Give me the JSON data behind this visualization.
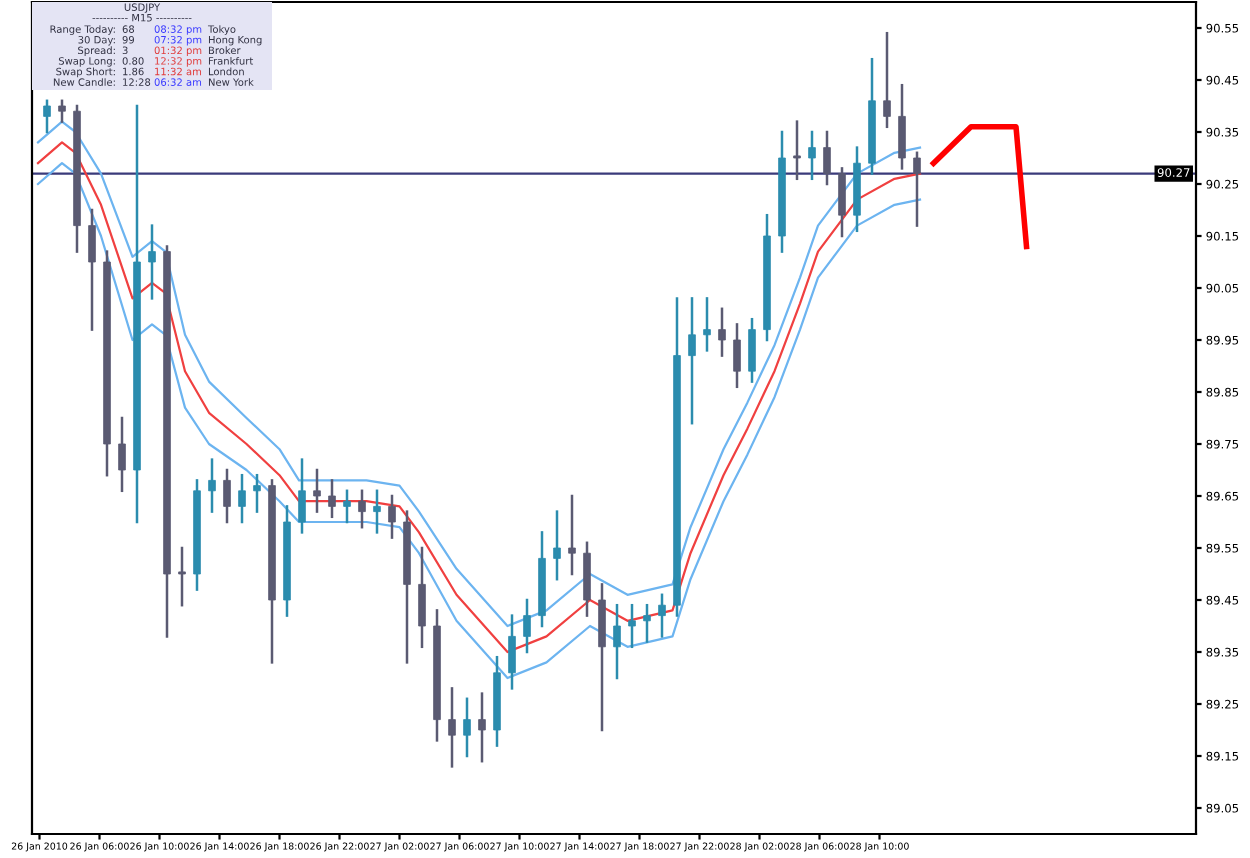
{
  "chart_data": {
    "type": "candlestick",
    "x": [
      "2010-01-26T02:30",
      "2010-01-26T03:30",
      "2010-01-26T04:30",
      "2010-01-26T05:30",
      "2010-01-26T06:30",
      "2010-01-26T07:30",
      "2010-01-26T08:30",
      "2010-01-26T09:30",
      "2010-01-26T10:30",
      "2010-01-26T11:30",
      "2010-01-26T12:30",
      "2010-01-26T13:30",
      "2010-01-26T14:30",
      "2010-01-26T15:30",
      "2010-01-26T16:30",
      "2010-01-26T17:30",
      "2010-01-26T18:30",
      "2010-01-26T19:30",
      "2010-01-26T20:30",
      "2010-01-26T21:30",
      "2010-01-26T22:30",
      "2010-01-26T23:30",
      "2010-01-27T00:30",
      "2010-01-27T01:30",
      "2010-01-27T02:30",
      "2010-01-27T03:30",
      "2010-01-27T04:30",
      "2010-01-27T05:30",
      "2010-01-27T06:30",
      "2010-01-27T07:30",
      "2010-01-27T08:30",
      "2010-01-27T09:30",
      "2010-01-27T10:30",
      "2010-01-27T11:30",
      "2010-01-27T12:30",
      "2010-01-27T13:30",
      "2010-01-27T14:30",
      "2010-01-27T15:30",
      "2010-01-27T16:30",
      "2010-01-27T17:30",
      "2010-01-27T18:30",
      "2010-01-27T19:30",
      "2010-01-27T20:30",
      "2010-01-27T21:30",
      "2010-01-27T22:30",
      "2010-01-27T23:30",
      "2010-01-28T00:30",
      "2010-01-28T01:30",
      "2010-01-28T02:30",
      "2010-01-28T03:30",
      "2010-01-28T04:30",
      "2010-01-28T05:30",
      "2010-01-28T06:30",
      "2010-01-28T07:30",
      "2010-01-28T08:30",
      "2010-01-28T09:30",
      "2010-01-28T10:30",
      "2010-01-28T11:30",
      "2010-01-28T12:30"
    ],
    "ohlc": [
      [
        90.38,
        90.41,
        90.35,
        90.4
      ],
      [
        90.4,
        90.41,
        90.37,
        90.39
      ],
      [
        90.39,
        90.4,
        90.12,
        90.17
      ],
      [
        90.17,
        90.2,
        89.97,
        90.1
      ],
      [
        90.1,
        90.12,
        89.69,
        89.75
      ],
      [
        89.75,
        89.8,
        89.66,
        89.7
      ],
      [
        89.7,
        90.4,
        89.6,
        90.1
      ],
      [
        90.1,
        90.17,
        90.03,
        90.12
      ],
      [
        90.12,
        90.13,
        89.38,
        89.5
      ],
      [
        89.5,
        89.55,
        89.44,
        89.5
      ],
      [
        89.5,
        89.68,
        89.47,
        89.66
      ],
      [
        89.66,
        89.72,
        89.62,
        89.68
      ],
      [
        89.68,
        89.7,
        89.6,
        89.63
      ],
      [
        89.63,
        89.69,
        89.6,
        89.66
      ],
      [
        89.66,
        89.69,
        89.62,
        89.67
      ],
      [
        89.67,
        89.68,
        89.33,
        89.45
      ],
      [
        89.45,
        89.63,
        89.42,
        89.6
      ],
      [
        89.6,
        89.72,
        89.58,
        89.66
      ],
      [
        89.66,
        89.7,
        89.62,
        89.65
      ],
      [
        89.65,
        89.68,
        89.61,
        89.63
      ],
      [
        89.63,
        89.66,
        89.6,
        89.64
      ],
      [
        89.64,
        89.66,
        89.59,
        89.62
      ],
      [
        89.62,
        89.66,
        89.58,
        89.63
      ],
      [
        89.63,
        89.65,
        89.57,
        89.6
      ],
      [
        89.6,
        89.62,
        89.33,
        89.48
      ],
      [
        89.48,
        89.55,
        89.36,
        89.4
      ],
      [
        89.4,
        89.43,
        89.18,
        89.22
      ],
      [
        89.22,
        89.28,
        89.13,
        89.19
      ],
      [
        89.19,
        89.26,
        89.15,
        89.22
      ],
      [
        89.22,
        89.27,
        89.14,
        89.2
      ],
      [
        89.2,
        89.34,
        89.17,
        89.31
      ],
      [
        89.31,
        89.42,
        89.28,
        89.38
      ],
      [
        89.38,
        89.45,
        89.35,
        89.42
      ],
      [
        89.42,
        89.58,
        89.4,
        89.53
      ],
      [
        89.53,
        89.62,
        89.49,
        89.55
      ],
      [
        89.55,
        89.65,
        89.5,
        89.54
      ],
      [
        89.54,
        89.56,
        89.42,
        89.45
      ],
      [
        89.45,
        89.48,
        89.2,
        89.36
      ],
      [
        89.36,
        89.44,
        89.3,
        89.4
      ],
      [
        89.4,
        89.44,
        89.36,
        89.41
      ],
      [
        89.41,
        89.44,
        89.37,
        89.42
      ],
      [
        89.42,
        89.46,
        89.38,
        89.44
      ],
      [
        89.44,
        90.03,
        89.42,
        89.92
      ],
      [
        89.92,
        90.03,
        89.79,
        89.96
      ],
      [
        89.96,
        90.03,
        89.93,
        89.97
      ],
      [
        89.97,
        90.01,
        89.92,
        89.95
      ],
      [
        89.95,
        89.98,
        89.86,
        89.89
      ],
      [
        89.89,
        89.99,
        89.87,
        89.97
      ],
      [
        89.97,
        90.19,
        89.95,
        90.15
      ],
      [
        90.15,
        90.35,
        90.12,
        90.3
      ],
      [
        90.3,
        90.37,
        90.26,
        90.3
      ],
      [
        90.3,
        90.35,
        90.26,
        90.32
      ],
      [
        90.32,
        90.35,
        90.25,
        90.27
      ],
      [
        90.27,
        90.28,
        90.15,
        90.19
      ],
      [
        90.19,
        90.32,
        90.16,
        90.29
      ],
      [
        90.29,
        90.49,
        90.27,
        90.41
      ],
      [
        90.41,
        90.54,
        90.36,
        90.38
      ],
      [
        90.38,
        90.44,
        90.28,
        90.3
      ],
      [
        90.3,
        90.31,
        90.17,
        90.27
      ]
    ],
    "colors": [
      "#2b8cae",
      "#5a5a72",
      "#5a5a72",
      "#5a5a72",
      "#5a5a72",
      "#5a5a72",
      "#2b8cae",
      "#2b8cae",
      "#5a5a72",
      "#5a5a72",
      "#2b8cae",
      "#2b8cae",
      "#5a5a72",
      "#2b8cae",
      "#2b8cae",
      "#5a5a72",
      "#2b8cae",
      "#2b8cae",
      "#5a5a72",
      "#5a5a72",
      "#2b8cae",
      "#5a5a72",
      "#2b8cae",
      "#5a5a72",
      "#5a5a72",
      "#5a5a72",
      "#5a5a72",
      "#5a5a72",
      "#2b8cae",
      "#5a5a72",
      "#2b8cae",
      "#2b8cae",
      "#2b8cae",
      "#2b8cae",
      "#2b8cae",
      "#5a5a72",
      "#5a5a72",
      "#5a5a72",
      "#2b8cae",
      "#2b8cae",
      "#2b8cae",
      "#2b8cae",
      "#2b8cae",
      "#2b8cae",
      "#2b8cae",
      "#5a5a72",
      "#5a5a72",
      "#2b8cae",
      "#2b8cae",
      "#2b8cae",
      "#5a5a72",
      "#2b8cae",
      "#5a5a72",
      "#5a5a72",
      "#2b8cae",
      "#2b8cae",
      "#5a5a72",
      "#5a5a72",
      "#5a5a72"
    ],
    "series": [
      {
        "type": "line",
        "color": "#6cb4f0",
        "x": [
          "2010-01-26T01:54",
          "2010-01-26T03:30",
          "2010-01-26T04:24",
          "2010-01-26T06:06",
          "2010-01-26T08:12",
          "2010-01-26T09:30",
          "2010-01-26T10:24",
          "2010-01-26T11:42",
          "2010-01-26T13:18",
          "2010-01-26T15:48",
          "2010-01-26T18:00",
          "2010-01-26T19:18",
          "2010-01-26T20:54",
          "2010-01-26T23:48",
          "2010-01-27T02:00",
          "2010-01-27T03:18",
          "2010-01-27T05:48",
          "2010-01-27T09:12",
          "2010-01-27T11:48",
          "2010-01-27T14:42",
          "2010-01-27T17:12",
          "2010-01-27T20:12",
          "2010-01-27T21:24",
          "2010-01-27T23:36",
          "2010-01-28T01:12",
          "2010-01-28T03:00",
          "2010-01-28T04:42",
          "2010-01-28T05:54",
          "2010-01-28T07:12",
          "2010-01-28T08:30",
          "2010-01-28T11:00",
          "2010-01-28T12:42"
        ],
        "values": [
          90.33,
          90.37,
          90.35,
          90.27,
          90.11,
          90.14,
          90.12,
          89.96,
          89.87,
          89.8,
          89.74,
          89.68,
          89.68,
          89.68,
          89.67,
          89.62,
          89.51,
          89.4,
          89.43,
          89.5,
          89.46,
          89.48,
          89.59,
          89.74,
          89.83,
          89.94,
          90.07,
          90.17,
          90.22,
          90.27,
          90.31,
          90.32
        ]
      },
      {
        "type": "line",
        "color": "#f04040",
        "x": [
          "2010-01-26T01:54",
          "2010-01-26T03:30",
          "2010-01-26T04:24",
          "2010-01-26T06:06",
          "2010-01-26T08:12",
          "2010-01-26T09:30",
          "2010-01-26T10:24",
          "2010-01-26T11:42",
          "2010-01-26T13:18",
          "2010-01-26T15:48",
          "2010-01-26T18:00",
          "2010-01-26T19:18",
          "2010-01-26T20:54",
          "2010-01-26T23:48",
          "2010-01-27T02:00",
          "2010-01-27T03:18",
          "2010-01-27T05:48",
          "2010-01-27T09:12",
          "2010-01-27T11:48",
          "2010-01-27T14:42",
          "2010-01-27T17:12",
          "2010-01-27T20:12",
          "2010-01-27T21:24",
          "2010-01-27T23:36",
          "2010-01-28T01:12",
          "2010-01-28T03:00",
          "2010-01-28T04:42",
          "2010-01-28T05:54",
          "2010-01-28T07:12",
          "2010-01-28T08:30",
          "2010-01-28T11:00",
          "2010-01-28T12:42"
        ],
        "values": [
          90.29,
          90.33,
          90.31,
          90.21,
          90.03,
          90.06,
          90.04,
          89.89,
          89.81,
          89.75,
          89.69,
          89.64,
          89.64,
          89.64,
          89.63,
          89.58,
          89.46,
          89.35,
          89.38,
          89.45,
          89.41,
          89.43,
          89.54,
          89.69,
          89.78,
          89.89,
          90.02,
          90.12,
          90.17,
          90.22,
          90.26,
          90.27
        ]
      },
      {
        "type": "line",
        "color": "#6cb4f0",
        "x": [
          "2010-01-26T01:54",
          "2010-01-26T03:30",
          "2010-01-26T04:24",
          "2010-01-26T06:06",
          "2010-01-26T08:12",
          "2010-01-26T09:30",
          "2010-01-26T10:24",
          "2010-01-26T11:42",
          "2010-01-26T13:18",
          "2010-01-26T15:48",
          "2010-01-26T18:00",
          "2010-01-26T19:18",
          "2010-01-26T20:54",
          "2010-01-26T23:48",
          "2010-01-27T02:00",
          "2010-01-27T03:18",
          "2010-01-27T05:48",
          "2010-01-27T09:12",
          "2010-01-27T11:48",
          "2010-01-27T14:42",
          "2010-01-27T17:12",
          "2010-01-27T20:12",
          "2010-01-27T21:24",
          "2010-01-27T23:36",
          "2010-01-28T01:12",
          "2010-01-28T03:00",
          "2010-01-28T04:42",
          "2010-01-28T05:54",
          "2010-01-28T07:12",
          "2010-01-28T08:30",
          "2010-01-28T11:00",
          "2010-01-28T12:42"
        ],
        "values": [
          90.25,
          90.29,
          90.27,
          90.15,
          89.95,
          89.98,
          89.96,
          89.82,
          89.75,
          89.7,
          89.64,
          89.6,
          89.6,
          89.6,
          89.59,
          89.54,
          89.41,
          89.3,
          89.33,
          89.4,
          89.36,
          89.38,
          89.49,
          89.64,
          89.73,
          89.84,
          89.97,
          90.07,
          90.12,
          90.17,
          90.21,
          90.22
        ]
      },
      {
        "type": "line",
        "color": "#ff0000",
        "x": [
          "2010-01-28T13:36",
          "2010-01-28T16:06",
          "2010-01-28T19:06",
          "2010-01-28T19:48"
        ],
        "values": [
          90.29,
          90.36,
          90.36,
          90.13
        ]
      }
    ],
    "ref_lines": [
      {
        "axis": "y",
        "value": 90.27,
        "label": "90.27",
        "color": "#3a3a7a"
      }
    ],
    "xlim": [
      "2010-01-26T01:30",
      "2010-01-29T07:06"
    ],
    "xticks": [
      {
        "value": "2010-01-26T02:00",
        "label": null
      },
      {
        "value": "2010-01-26T06:00",
        "label": "26 Jan 06:00"
      },
      {
        "value": "2010-01-26T10:00",
        "label": "26 Jan 10:00"
      },
      {
        "value": "2010-01-26T14:00",
        "label": "26 Jan 14:00"
      },
      {
        "value": "2010-01-26T18:00",
        "label": "26 Jan 18:00"
      },
      {
        "value": "2010-01-26T22:00",
        "label": "26 Jan 22:00"
      },
      {
        "value": "2010-01-27T02:00",
        "label": "27 Jan 02:00"
      },
      {
        "value": "2010-01-27T06:00",
        "label": "27 Jan 06:00"
      },
      {
        "value": "2010-01-27T10:00",
        "label": "27 Jan 10:00"
      },
      {
        "value": "2010-01-27T14:00",
        "label": "27 Jan 14:00"
      },
      {
        "value": "2010-01-27T18:00",
        "label": "27 Jan 18:00"
      },
      {
        "value": "2010-01-27T22:00",
        "label": "27 Jan 22:00"
      },
      {
        "value": "2010-01-28T02:00",
        "label": "28 Jan 02:00"
      },
      {
        "value": "2010-01-28T06:00",
        "label": "28 Jan 06:00"
      },
      {
        "value": "2010-01-28T10:00",
        "label": "28 Jan 10:00"
      }
    ],
    "ylim": [
      89.0,
      90.6
    ],
    "yticks": [
      90.55,
      90.45,
      90.35,
      90.25,
      90.15,
      90.05,
      89.95,
      89.85,
      89.75,
      89.65,
      89.55,
      89.45,
      89.35,
      89.25,
      89.15,
      89.05
    ],
    "grid": false,
    "annotations": [
      "USDJPY",
      "---------- M15 ----------",
      "Range Today:",
      "68",
      "08:32 pm",
      "Tokyo",
      "30 Day:",
      "99",
      "07:32 pm",
      "Hong Kong",
      "Spread:",
      "3",
      "01:32 pm",
      "Broker",
      "Swap Long:",
      "0.80",
      "12:32 pm",
      "Frankfurt",
      "Swap Short:",
      "1.86",
      "11:32 am",
      "London",
      "New Candle:",
      "12:28",
      "06:32 am",
      "New York",
      "26 Jan 2010"
    ]
  }
}
